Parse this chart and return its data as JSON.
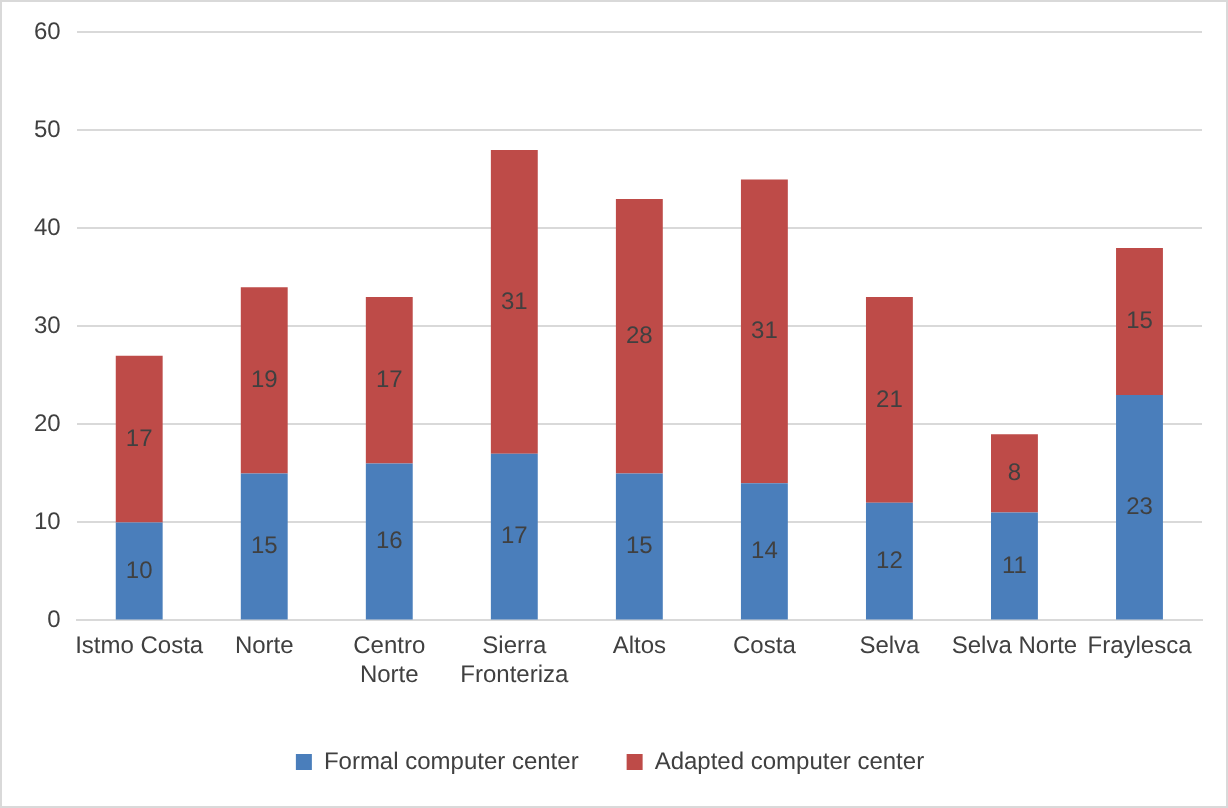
{
  "chart_data": {
    "type": "bar",
    "stacked": true,
    "categories": [
      "Istmo Costa",
      "Norte",
      "Centro Norte",
      "Sierra Fronteriza",
      "Altos",
      "Costa",
      "Selva",
      "Selva Norte",
      "Fraylesca"
    ],
    "series": [
      {
        "name": "Formal computer center",
        "color": "#4a7ebb",
        "values": [
          10,
          15,
          16,
          17,
          15,
          14,
          12,
          11,
          23
        ]
      },
      {
        "name": "Adapted computer center",
        "color": "#be4b48",
        "values": [
          17,
          19,
          17,
          31,
          28,
          31,
          21,
          8,
          15
        ]
      }
    ],
    "ylim": [
      0,
      60
    ],
    "yticks": [
      0,
      10,
      20,
      30,
      40,
      50,
      60
    ],
    "grid": "y",
    "legend": "bottom",
    "data_labels": true
  }
}
